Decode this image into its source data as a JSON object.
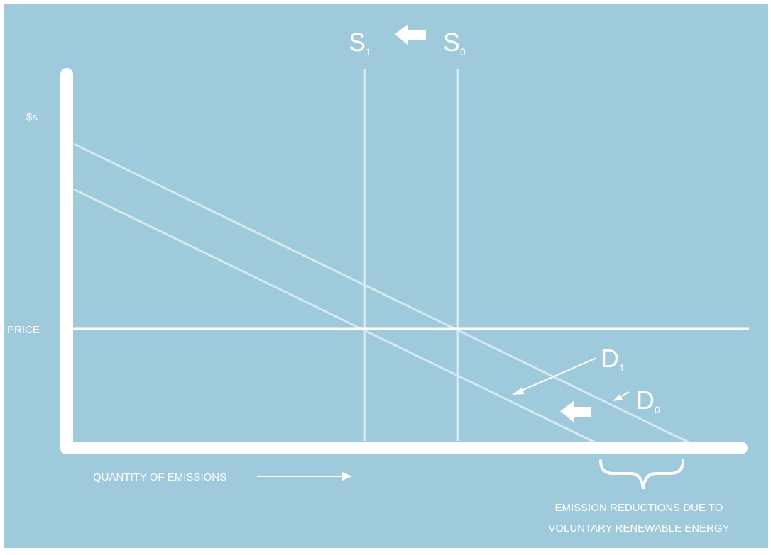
{
  "colors": {
    "background": "#9fcadb",
    "axis": "#ffffff",
    "curve": "#d6e9f1",
    "price_line": "#ffffff",
    "text": "#ffffff"
  },
  "labels": {
    "y_axis": "$s",
    "price": "PRICE",
    "x_axis": "QUANTITY OF EMISSIONS",
    "s1_main": "S",
    "s1_sub": "1",
    "s0_main": "S",
    "s0_sub": "0",
    "d1_main": "D",
    "d1_sub": "1",
    "d0_main": "D",
    "d0_sub": "0",
    "brace_note_line1": "EMISSION REDUCTIONS DUE TO",
    "brace_note_line2": "VOLUNTARY RENEWABLE ENERGY"
  }
}
